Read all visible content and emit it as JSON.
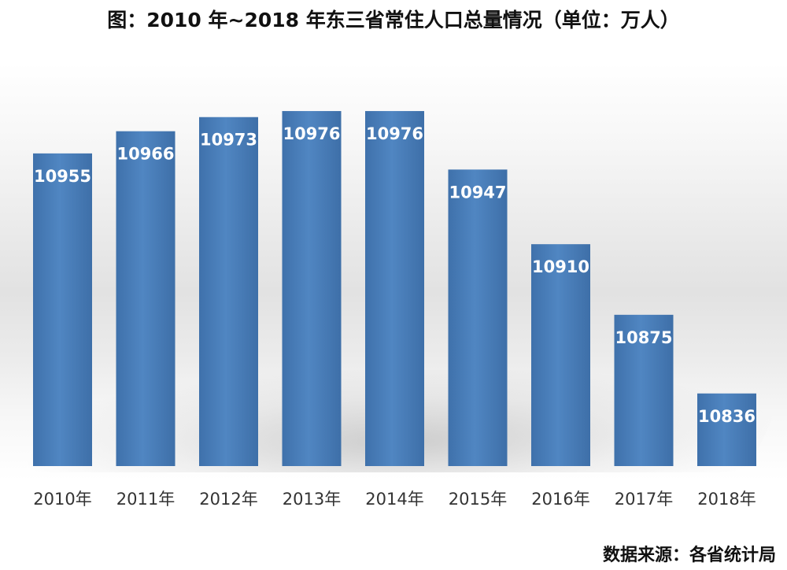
{
  "title": "图：2010 年~2018 年东三省常住人口总量情况（单位：万人）",
  "source": "数据来源：各省统计局",
  "chart_data": {
    "type": "bar",
    "title": "图：2010 年~2018 年东三省常住人口总量情况（单位：万人）",
    "categories": [
      "2010年",
      "2011年",
      "2012年",
      "2013年",
      "2014年",
      "2015年",
      "2016年",
      "2017年",
      "2018年"
    ],
    "values": [
      10955,
      10966,
      10973,
      10976,
      10976,
      10947,
      10910,
      10875,
      10836
    ],
    "xlabel": "",
    "ylabel": "",
    "ylim": [
      10800,
      10985
    ],
    "grid": false,
    "legend": "none",
    "bar_color": "#4a7db8",
    "label_color": "#ffffff"
  }
}
